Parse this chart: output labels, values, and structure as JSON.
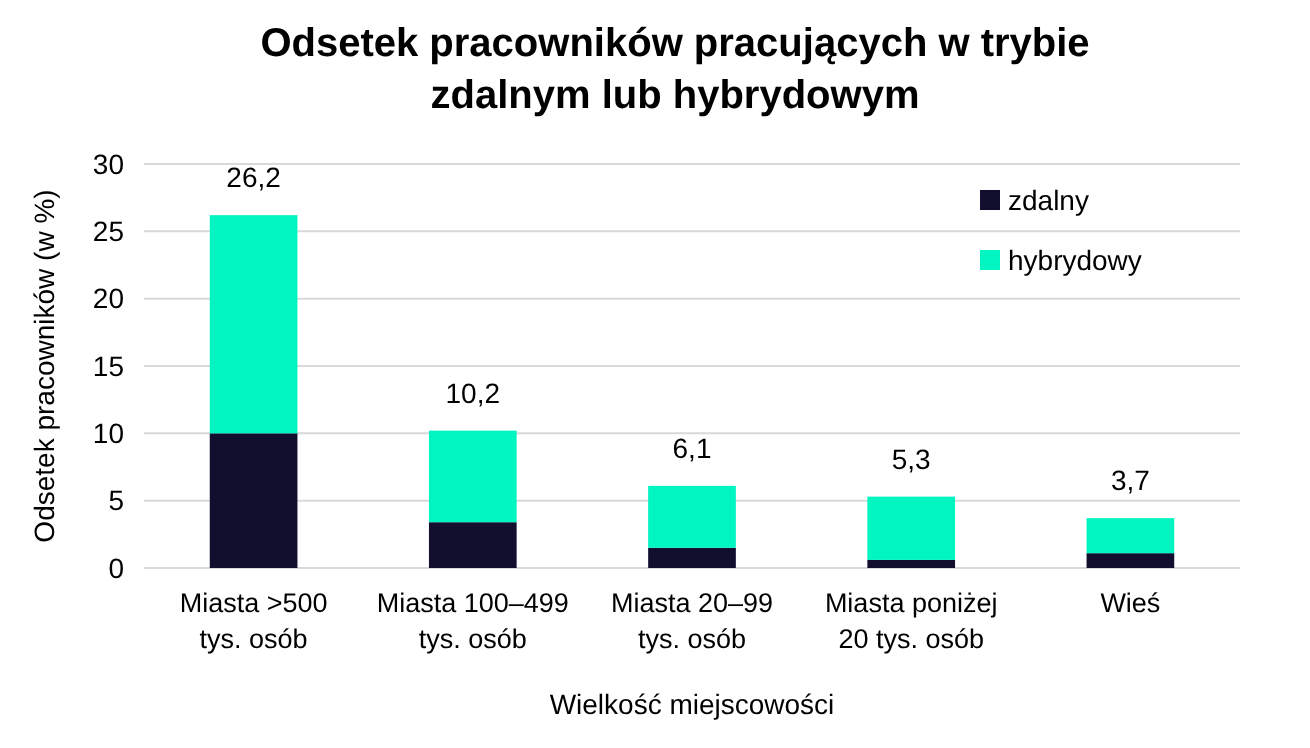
{
  "chart_data": {
    "type": "bar",
    "title": "Odsetek pracowników pracujących w trybie zdalnym lub hybrydowym",
    "xlabel": "Wielkość miejscowości",
    "ylabel": "Odsetek pracowników (w %)",
    "categories": [
      "Miasta >500 tys. osób",
      "Miasta 100–499 tys. osób",
      "Miasta 20–99 tys. osób",
      "Miasta poniżej 20 tys. osób",
      "Wieś"
    ],
    "stacked": true,
    "series": [
      {
        "name": "zdalny",
        "color": "#110e2e",
        "values": [
          10.0,
          3.4,
          1.5,
          0.6,
          1.1
        ]
      },
      {
        "name": "hybrydowy",
        "color": "#00f5c0",
        "values": [
          16.2,
          6.8,
          4.6,
          4.7,
          2.6
        ]
      }
    ],
    "totals": [
      "26,2",
      "10,2",
      "6,1",
      "5,3",
      "3,7"
    ],
    "ylim": [
      0,
      30
    ],
    "yticks": [
      0,
      5,
      10,
      15,
      20,
      25,
      30
    ],
    "grid": "y",
    "legend": "top right"
  }
}
